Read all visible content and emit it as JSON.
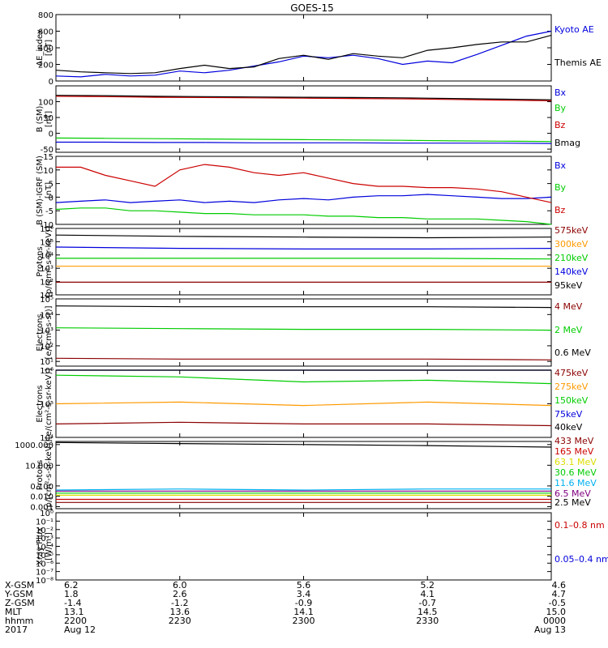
{
  "title": "GOES-15",
  "colors": {
    "black": "#000000",
    "blue": "#0000dd",
    "green": "#00cc00",
    "red": "#cc0000",
    "darkred": "#8b0000",
    "orange": "#ff9900",
    "cyan": "#00b0f0",
    "yellow": "#dddd00",
    "purple": "#800080"
  },
  "chart_data": [
    {
      "type": "line",
      "id": "ae",
      "ylabel": "AE_index",
      "yunits": "[nT]",
      "ylim": [
        0,
        800
      ],
      "yticks": [
        "800",
        "600",
        "400",
        "200",
        "0"
      ],
      "ytickvals": [
        800,
        600,
        400,
        200,
        0
      ],
      "x": [
        0,
        0.05,
        0.1,
        0.15,
        0.2,
        0.25,
        0.3,
        0.35,
        0.4,
        0.45,
        0.5,
        0.55,
        0.6,
        0.65,
        0.7,
        0.75,
        0.8,
        0.85,
        0.9,
        0.95,
        1.0
      ],
      "series": [
        {
          "name": "Kyoto AE",
          "color": "blue",
          "values": [
            60,
            50,
            80,
            60,
            70,
            120,
            100,
            130,
            180,
            230,
            300,
            280,
            310,
            270,
            200,
            240,
            220,
            320,
            430,
            540,
            600
          ]
        },
        {
          "name": "Themis AE",
          "color": "black",
          "values": [
            130,
            110,
            100,
            90,
            100,
            150,
            190,
            150,
            170,
            270,
            310,
            260,
            330,
            300,
            280,
            370,
            400,
            440,
            470,
            470,
            550
          ]
        }
      ]
    },
    {
      "type": "line",
      "id": "bsm",
      "ylabel": "B (SM)",
      "yunits": "[nT]",
      "ylim": [
        -60,
        150
      ],
      "yticks": [
        "100",
        "50",
        "0",
        "-50"
      ],
      "ytickvals": [
        100,
        50,
        0,
        -50
      ],
      "x": [
        0,
        0.1,
        0.2,
        0.3,
        0.4,
        0.5,
        0.6,
        0.7,
        0.8,
        0.9,
        1.0
      ],
      "series": [
        {
          "name": "Bx",
          "color": "blue",
          "values": [
            -28,
            -28,
            -29,
            -29,
            -30,
            -30,
            -30,
            -31,
            -31,
            -31,
            -32
          ]
        },
        {
          "name": "By",
          "color": "green",
          "values": [
            -15,
            -16,
            -17,
            -18,
            -19,
            -20,
            -21,
            -22,
            -24,
            -25,
            -26
          ]
        },
        {
          "name": "Bz",
          "color": "red",
          "values": [
            117,
            116,
            114,
            113,
            112,
            111,
            110,
            109,
            107,
            105,
            103
          ]
        },
        {
          "name": "Bmag",
          "color": "black",
          "values": [
            120,
            119,
            117,
            116,
            115,
            114,
            113,
            112,
            110,
            108,
            106
          ]
        }
      ]
    },
    {
      "type": "line",
      "id": "bigrf",
      "ylabel": "B (SM)-IGRF (SM)",
      "yunits": "[nT]",
      "ylim": [
        -10,
        15
      ],
      "yticks": [
        "15",
        "10",
        "5",
        "0",
        "-5",
        "-10"
      ],
      "ytickvals": [
        15,
        10,
        5,
        0,
        -5,
        -10
      ],
      "x": [
        0,
        0.05,
        0.1,
        0.15,
        0.2,
        0.25,
        0.3,
        0.35,
        0.4,
        0.45,
        0.5,
        0.55,
        0.6,
        0.65,
        0.7,
        0.75,
        0.8,
        0.85,
        0.9,
        0.95,
        1.0
      ],
      "series": [
        {
          "name": "Bx",
          "color": "blue",
          "values": [
            -2,
            -1.5,
            -1,
            -2,
            -1.5,
            -1,
            -2,
            -1.5,
            -2,
            -1,
            -0.5,
            -1,
            0,
            0.5,
            0.5,
            1,
            0.5,
            0,
            -0.5,
            -0.5,
            0
          ]
        },
        {
          "name": "By",
          "color": "green",
          "values": [
            -4.5,
            -4,
            -4,
            -5,
            -5,
            -5.5,
            -6,
            -6,
            -6.5,
            -6.5,
            -6.5,
            -7,
            -7,
            -7.5,
            -7.5,
            -8,
            -8,
            -8,
            -8.5,
            -9,
            -10
          ]
        },
        {
          "name": "Bz",
          "color": "red",
          "values": [
            11,
            11,
            8,
            6,
            4,
            10,
            12,
            11,
            9,
            8,
            9,
            7,
            5,
            4,
            4,
            3.5,
            3.5,
            3,
            2,
            0,
            -2
          ]
        }
      ]
    },
    {
      "type": "line",
      "id": "protons_mageds",
      "log": true,
      "ylabel": "Protons",
      "yunits": "[p/(cm²-s-sr-keV)]",
      "ylim": [
        1,
        6
      ],
      "yticks": [
        "10⁶",
        "10⁵",
        "10⁴",
        "10³",
        "10²",
        "10¹"
      ],
      "ytickvals": [
        6,
        5,
        4,
        3,
        2,
        1
      ],
      "x": [
        0,
        0.25,
        0.5,
        0.75,
        1.0
      ],
      "series": [
        {
          "name": "575keV",
          "color": "darkred",
          "values": [
            1.95,
            1.95,
            1.95,
            1.95,
            1.95
          ]
        },
        {
          "name": "300keV",
          "color": "orange",
          "values": [
            3.15,
            3.15,
            3.15,
            3.15,
            3.15
          ]
        },
        {
          "name": "210keV",
          "color": "green",
          "values": [
            3.75,
            3.75,
            3.75,
            3.75,
            3.7
          ]
        },
        {
          "name": "140keV",
          "color": "blue",
          "values": [
            4.6,
            4.5,
            4.45,
            4.45,
            4.5
          ]
        },
        {
          "name": "95keV",
          "color": "black",
          "values": [
            5.5,
            5.4,
            5.35,
            5.3,
            5.35
          ]
        }
      ]
    },
    {
      "type": "line",
      "id": "electrons_hi",
      "log": true,
      "ylabel": "Electrons",
      "yunits": "[e/(cm²-s-sr)]",
      "ylim": [
        0.7,
        5
      ],
      "yticks": [
        "10⁵",
        "10⁴",
        "10³",
        "10²",
        "10¹"
      ],
      "ytickvals": [
        5,
        4,
        3,
        2,
        1
      ],
      "x": [
        0,
        0.25,
        0.5,
        0.75,
        1.0
      ],
      "series": [
        {
          "name": "4 MeV",
          "color": "darkred",
          "values": [
            1.2,
            1.15,
            1.15,
            1.15,
            1.1
          ]
        },
        {
          "name": "2 MeV",
          "color": "green",
          "values": [
            3.15,
            3.1,
            3.05,
            3.05,
            3.0
          ]
        },
        {
          "name": "0.6 MeV",
          "color": "black",
          "values": [
            4.55,
            4.5,
            4.5,
            4.5,
            4.45
          ]
        }
      ]
    },
    {
      "type": "line",
      "id": "electrons_mageds",
      "log": true,
      "ylabel": "Electrons",
      "yunits": "[e/(cm²-s-sr-keV)]",
      "ylim": [
        4,
        6
      ],
      "yticks": [
        "10⁶",
        "10⁵",
        "10⁴"
      ],
      "ytickvals": [
        6,
        5,
        4
      ],
      "x": [
        0,
        0.25,
        0.5,
        0.75,
        1.0
      ],
      "series": [
        {
          "name": "475keV",
          "color": "darkred",
          "values": [
            4.4,
            4.45,
            4.4,
            4.4,
            4.35
          ]
        },
        {
          "name": "275keV",
          "color": "orange",
          "values": [
            5.0,
            5.05,
            4.95,
            5.05,
            4.95
          ]
        },
        {
          "name": "150keV",
          "color": "green",
          "values": [
            5.85,
            5.8,
            5.65,
            5.7,
            5.6
          ]
        },
        {
          "name": "75keV",
          "color": "blue",
          "values": [
            6.0,
            6.0,
            6.0,
            6.0,
            6.0
          ]
        },
        {
          "name": "40keV",
          "color": "black",
          "values": [
            6.0,
            6.0,
            6.0,
            6.0,
            6.0
          ]
        }
      ]
    },
    {
      "type": "line",
      "id": "protons_eps",
      "log": true,
      "ylabel": "Protons",
      "yunits": "[p/(cm²-s-sr-keV)]",
      "ylim": [
        -3.2,
        3.3
      ],
      "yticks": [
        "1000.000",
        "10.000",
        "0.100",
        "0.010",
        "0.001"
      ],
      "ytickvals": [
        3,
        1,
        -1,
        -2,
        -3
      ],
      "x": [
        0,
        0.25,
        0.5,
        0.75,
        1.0
      ],
      "series": [
        {
          "name": "433 MeV",
          "color": "darkred",
          "values": [
            -2.6,
            -2.6,
            -2.6,
            -2.6,
            -2.6
          ]
        },
        {
          "name": "165 MeV",
          "color": "red",
          "values": [
            -2.3,
            -2.3,
            -2.3,
            -2.3,
            -2.3
          ]
        },
        {
          "name": "63.1 MeV",
          "color": "yellow",
          "values": [
            -1.9,
            -1.9,
            -1.9,
            -1.9,
            -1.9
          ]
        },
        {
          "name": "30.6 MeV",
          "color": "green",
          "values": [
            -1.7,
            -1.7,
            -1.7,
            -1.7,
            -1.7
          ]
        },
        {
          "name": "11.6 MeV",
          "color": "cyan",
          "values": [
            -1.4,
            -1.3,
            -1.4,
            -1.3,
            -1.3
          ]
        },
        {
          "name": "6.5 MeV",
          "color": "purple",
          "values": [
            -1.5,
            -1.5,
            -1.5,
            -1.5,
            -1.5
          ]
        },
        {
          "name": "2.5 MeV",
          "color": "black",
          "values": [
            3.2,
            3.1,
            3.0,
            2.9,
            2.75
          ]
        }
      ]
    },
    {
      "type": "line",
      "id": "xray",
      "log": true,
      "ylabel": "Xray Flux",
      "yunits": "[W/m²]",
      "ylim": [
        -8,
        0
      ],
      "yticks": [
        "10⁰",
        "10⁻¹",
        "10⁻²",
        "10⁻³",
        "10⁻⁴",
        "10⁻⁵",
        "10⁻⁶",
        "10⁻⁷",
        "10⁻⁸"
      ],
      "ytickvals": [
        0,
        -1,
        -2,
        -3,
        -4,
        -5,
        -6,
        -7,
        -8
      ],
      "x": [],
      "series": [
        {
          "name": "0.1–0.8 nm",
          "color": "red",
          "values": []
        },
        {
          "name": "0.05–0.4 nm",
          "color": "blue",
          "values": []
        }
      ]
    }
  ],
  "ephemeris": {
    "row_labels": [
      "X-GSM",
      "Y-GSM",
      "Z-GSM",
      "MLT",
      "hhmm",
      "2017"
    ],
    "columns": [
      {
        "x": 0,
        "values": [
          "6.2",
          "1.8",
          "-1.4",
          "13.1",
          "2200",
          "Aug 12"
        ]
      },
      {
        "x": 0.25,
        "values": [
          "6.0",
          "2.6",
          "-1.2",
          "13.6",
          "2230",
          ""
        ]
      },
      {
        "x": 0.5,
        "values": [
          "5.6",
          "3.4",
          "-0.9",
          "14.1",
          "2300",
          ""
        ]
      },
      {
        "x": 0.75,
        "values": [
          "5.2",
          "4.1",
          "-0.7",
          "14.5",
          "2330",
          ""
        ]
      },
      {
        "x": 1.0,
        "values": [
          "4.6",
          "4.7",
          "-0.5",
          "15.0",
          "0000",
          "Aug 13"
        ]
      }
    ]
  }
}
